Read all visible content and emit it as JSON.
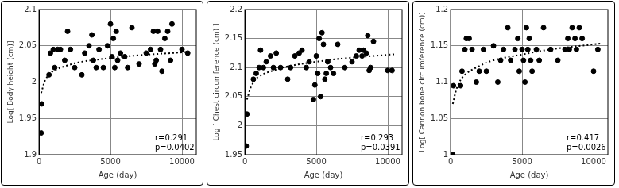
{
  "chart_data": [
    {
      "type": "scatter",
      "x_label": "Age (day)",
      "y_label": "Log[ Body height (cm)]",
      "xlim": [
        0,
        11000
      ],
      "xticks": [
        0,
        5000,
        10000
      ],
      "ylim": [
        1.9,
        2.1
      ],
      "yticks": [
        1.9,
        1.95,
        2,
        2.05,
        2.1
      ],
      "grid": true,
      "annotations": [
        "r=0.291",
        "p=0.0402"
      ],
      "series": [
        {
          "type": "scatter",
          "marker": "circle",
          "color": "#000000",
          "x": [
            150,
            200,
            700,
            800,
            1000,
            1100,
            1300,
            1500,
            1800,
            2000,
            2200,
            2500,
            3000,
            3200,
            3500,
            3700,
            3800,
            4000,
            4200,
            4500,
            4800,
            5000,
            5100,
            5200,
            5300,
            5400,
            5500,
            5700,
            6000,
            6200,
            6500,
            7000,
            7500,
            7800,
            8000,
            8100,
            8200,
            8300,
            8500,
            8600,
            8800,
            9000,
            9200,
            9300,
            10000,
            10400
          ],
          "values": [
            1.93,
            1.97,
            2.01,
            2.04,
            2.045,
            2.02,
            2.045,
            2.045,
            2.03,
            2.07,
            2.045,
            2.02,
            2.01,
            2.04,
            2.05,
            2.065,
            2.03,
            2.02,
            2.045,
            2.02,
            2.05,
            2.08,
            2.035,
            2.06,
            2.02,
            2.07,
            2.03,
            2.04,
            2.035,
            2.02,
            2.075,
            2.025,
            2.04,
            2.045,
            2.07,
            2.025,
            2.03,
            2.07,
            2.045,
            2.015,
            2.06,
            2.07,
            2.03,
            2.08,
            2.045,
            2.04
          ]
        },
        {
          "type": "line",
          "line_style": "dotted",
          "color": "#000000",
          "x": [
            150,
            500,
            1000,
            2000,
            3000,
            5000,
            7000,
            10000,
            10500
          ],
          "values": [
            1.985,
            2.005,
            2.015,
            2.023,
            2.028,
            2.033,
            2.037,
            2.041,
            2.042
          ]
        }
      ]
    },
    {
      "type": "scatter",
      "x_label": "Age (day)",
      "y_label": "Log [ Chest circumference (cm) ]",
      "xlim": [
        0,
        11000
      ],
      "xticks": [
        0,
        5000,
        10000
      ],
      "ylim": [
        1.95,
        2.2
      ],
      "yticks": [
        1.95,
        2,
        2.05,
        2.1,
        2.15,
        2.2
      ],
      "grid": true,
      "annotations": [
        "r=0.293",
        "p=0.0391"
      ],
      "series": [
        {
          "type": "scatter",
          "marker": "circle",
          "color": "#000000",
          "x": [
            100,
            150,
            600,
            800,
            1000,
            1100,
            1300,
            1500,
            1800,
            2000,
            2200,
            2500,
            3000,
            3200,
            3500,
            3800,
            4000,
            4300,
            4500,
            4800,
            4900,
            5000,
            5100,
            5200,
            5300,
            5400,
            5500,
            5600,
            5700,
            5800,
            6000,
            6200,
            6500,
            7000,
            7500,
            7800,
            8000,
            8200,
            8300,
            8500,
            8600,
            8700,
            8800,
            9000,
            10000,
            10300
          ],
          "values": [
            1.965,
            2.02,
            2.08,
            2.09,
            2.1,
            2.13,
            2.1,
            2.11,
            2.12,
            2.1,
            2.125,
            2.1,
            2.08,
            2.1,
            2.12,
            2.125,
            2.13,
            2.1,
            2.11,
            2.045,
            2.07,
            2.12,
            2.09,
            2.15,
            2.05,
            2.16,
            2.14,
            2.08,
            2.09,
            2.11,
            2.1,
            2.09,
            2.14,
            2.1,
            2.11,
            2.12,
            2.13,
            2.12,
            2.13,
            2.125,
            2.155,
            2.095,
            2.1,
            2.145,
            2.095,
            2.095
          ]
        },
        {
          "type": "line",
          "line_style": "dotted",
          "color": "#000000",
          "x": [
            150,
            500,
            1000,
            2000,
            3000,
            5000,
            7000,
            10000,
            10500
          ],
          "values": [
            2.045,
            2.07,
            2.085,
            2.095,
            2.102,
            2.11,
            2.116,
            2.122,
            2.123
          ]
        }
      ]
    },
    {
      "type": "scatter",
      "x_label": "Age (day)",
      "y_label": "Log[ Cannon bone circumference (cm)]",
      "xlim": [
        0,
        11000
      ],
      "xticks": [
        0,
        5000,
        10000
      ],
      "ylim": [
        1,
        1.2
      ],
      "yticks": [
        1,
        1.05,
        1.1,
        1.15,
        1.2
      ],
      "grid": true,
      "annotations": [
        "r=0.417",
        "p=0.0026"
      ],
      "series": [
        {
          "type": "scatter",
          "marker": "circle",
          "color": "#000000",
          "x": [
            150,
            200,
            700,
            800,
            1000,
            1100,
            1300,
            1500,
            1800,
            2000,
            2300,
            2500,
            3000,
            3300,
            3500,
            3700,
            4000,
            4200,
            4500,
            4700,
            4800,
            5000,
            5100,
            5200,
            5300,
            5400,
            5500,
            5600,
            5700,
            6000,
            6200,
            6500,
            7000,
            7500,
            8000,
            8200,
            8300,
            8500,
            8700,
            8800,
            9000,
            9200,
            10000,
            10300
          ],
          "values": [
            1.0,
            1.095,
            1.095,
            1.115,
            1.145,
            1.16,
            1.16,
            1.145,
            1.1,
            1.115,
            1.145,
            1.115,
            1.15,
            1.1,
            1.13,
            1.145,
            1.175,
            1.13,
            1.145,
            1.16,
            1.115,
            1.145,
            1.13,
            1.1,
            1.175,
            1.145,
            1.16,
            1.13,
            1.115,
            1.145,
            1.13,
            1.175,
            1.145,
            1.13,
            1.145,
            1.16,
            1.145,
            1.175,
            1.16,
            1.145,
            1.175,
            1.16,
            1.115,
            1.145
          ]
        },
        {
          "type": "line",
          "line_style": "dotted",
          "color": "#000000",
          "x": [
            150,
            500,
            1000,
            2000,
            3000,
            5000,
            7000,
            10000,
            10500
          ],
          "values": [
            1.07,
            1.095,
            1.11,
            1.122,
            1.13,
            1.138,
            1.145,
            1.152,
            1.153
          ]
        }
      ]
    }
  ]
}
